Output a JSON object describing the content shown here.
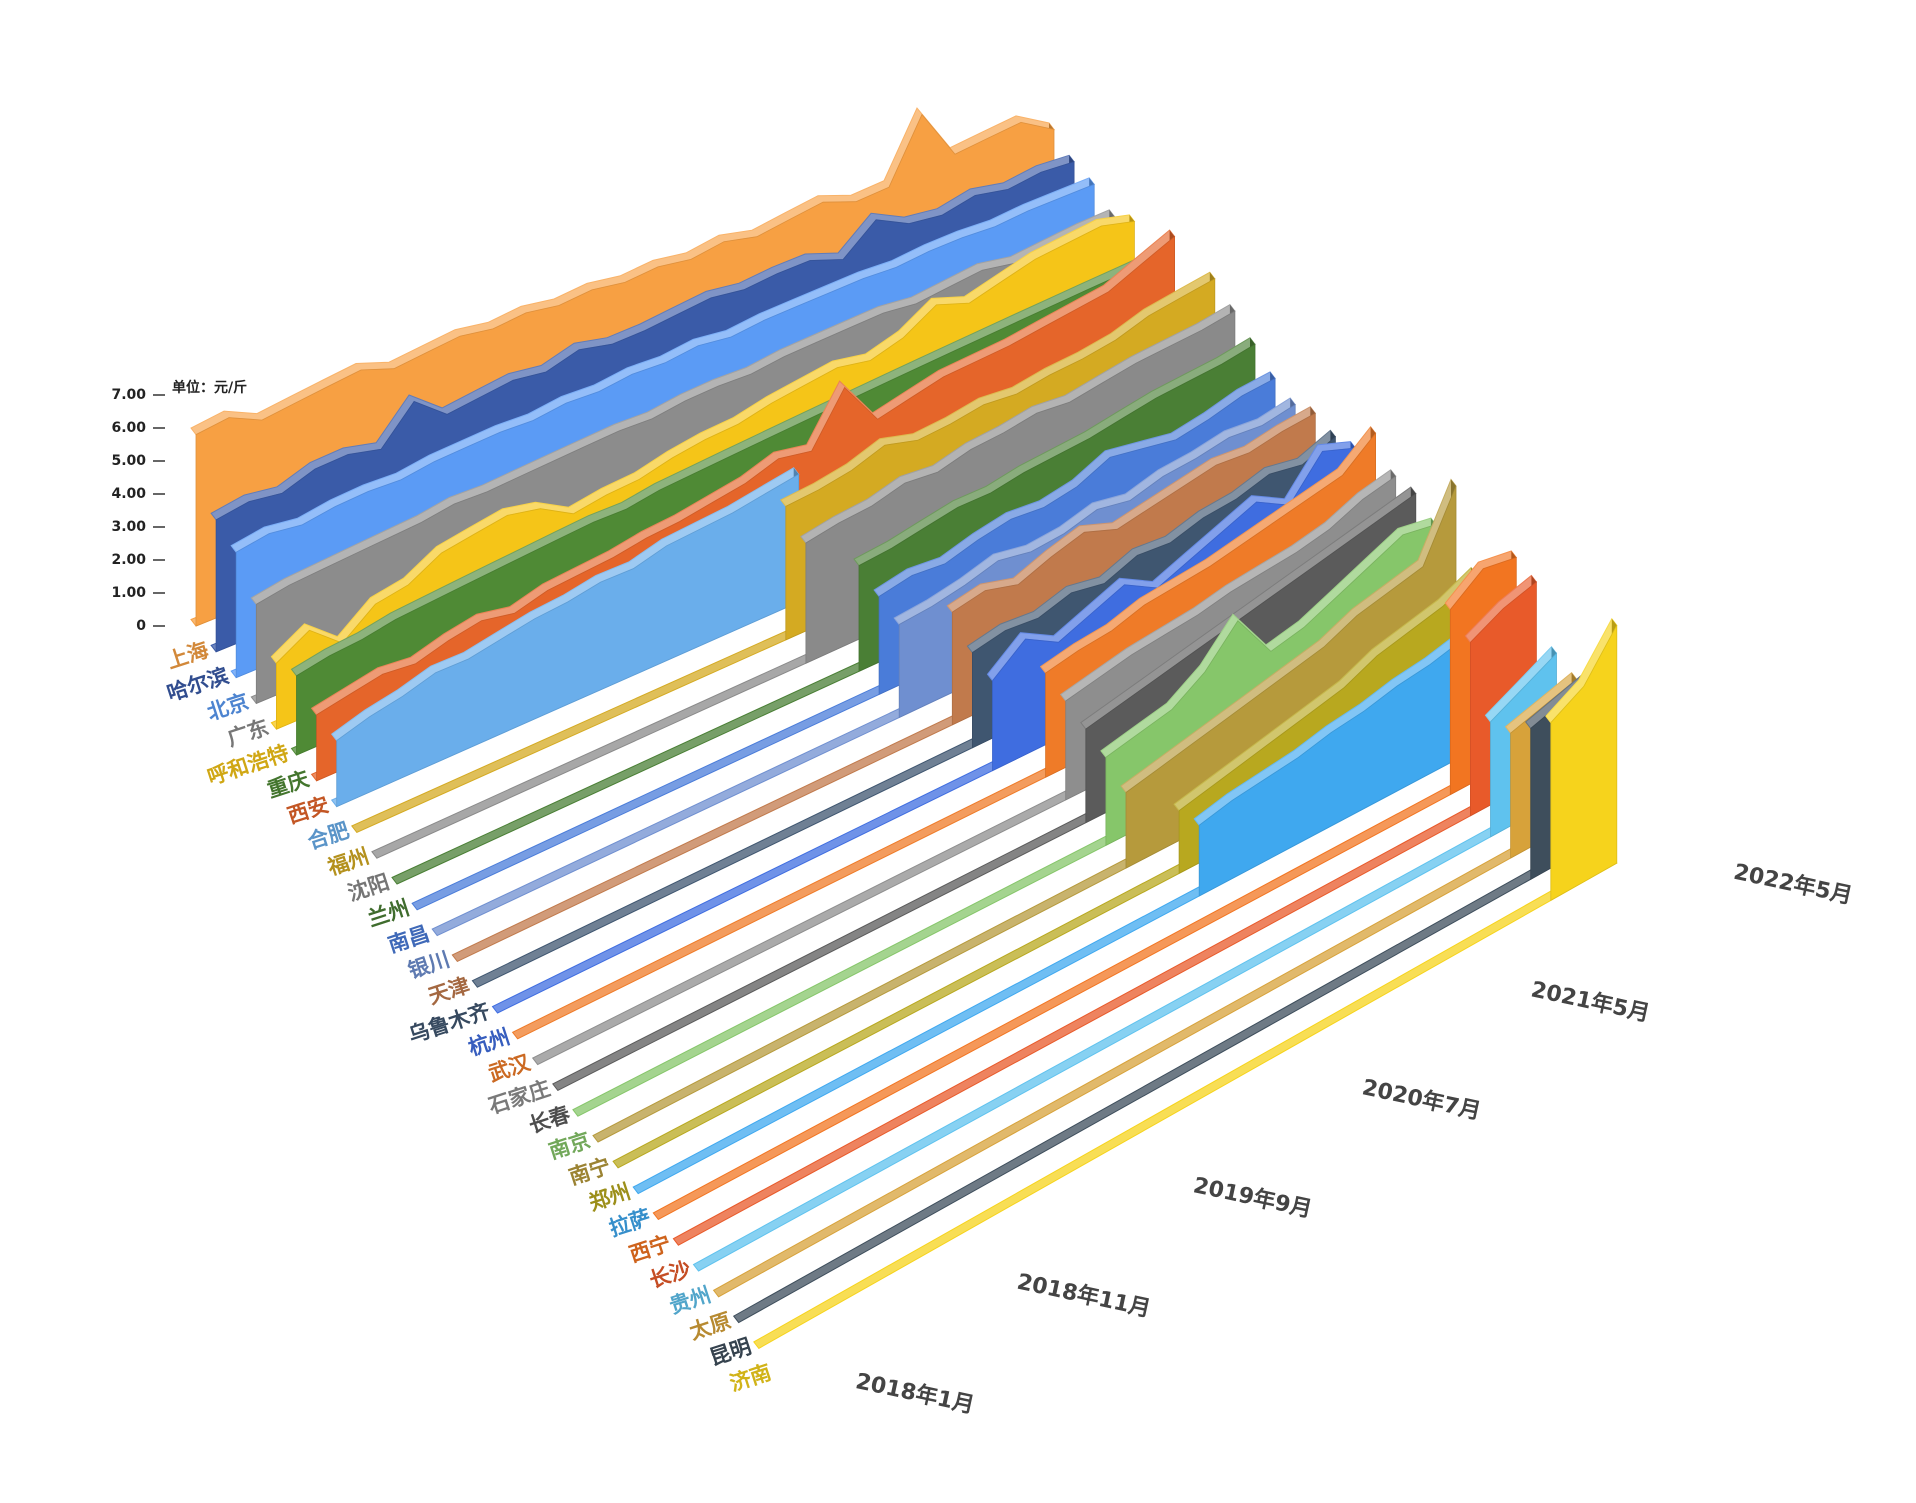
{
  "chart_data": {
    "type": "ribbon3d",
    "ylabel": "单位：元/斤",
    "categories": [
      "2018年1月",
      null,
      null,
      null,
      null,
      "2018年11月",
      null,
      null,
      null,
      null,
      "2019年9月",
      null,
      null,
      null,
      null,
      "2020年7月",
      null,
      null,
      null,
      null,
      "2021年5月",
      null,
      null,
      null,
      null,
      null,
      "2022年5月"
    ],
    "ylim": [
      0,
      7
    ],
    "yticks": [
      0,
      {
        "value": 1,
        "label": "1.00"
      },
      {
        "value": 2,
        "label": "2.00"
      },
      {
        "value": 3,
        "label": "3.00"
      },
      {
        "value": 4,
        "label": "4.00"
      },
      {
        "value": 5,
        "label": "5.00"
      },
      {
        "value": 6,
        "label": "6.00"
      },
      {
        "value": 7,
        "label": "7.00"
      }
    ],
    "series": [
      {
        "name": "上海",
        "color": "#f7a043",
        "values": [
          5.8,
          6.0,
          5.6,
          5.8,
          6.0,
          6.2,
          5.9,
          6.1,
          6.3,
          6.2,
          6.4,
          6.3,
          6.5,
          6.4,
          6.6,
          6.5,
          6.8,
          6.6,
          6.9,
          7.2,
          6.8,
          7.0,
          9.8,
          7.6,
          7.9,
          8.2,
          7.4
        ]
      },
      {
        "name": "哈尔滨",
        "color": "#3a5ba8",
        "values": [
          4.0,
          4.2,
          4.1,
          4.5,
          4.6,
          4.4,
          5.6,
          4.8,
          5.0,
          5.2,
          5.1,
          5.5,
          5.3,
          5.4,
          5.6,
          5.8,
          5.7,
          5.9,
          6.0,
          5.6,
          6.8,
          6.2,
          6.1,
          6.5,
          6.3,
          6.6,
          6.6
        ]
      },
      {
        "name": "北京",
        "color": "#5b9bf5",
        "values": [
          3.8,
          4.0,
          3.9,
          4.1,
          4.2,
          4.2,
          4.4,
          4.5,
          4.6,
          4.6,
          4.8,
          4.8,
          5.0,
          5.0,
          5.2,
          5.1,
          5.3,
          5.4,
          5.5,
          5.6,
          5.6,
          5.8,
          5.9,
          5.9,
          6.1,
          6.2,
          6.3
        ]
      },
      {
        "name": "广东",
        "color": "#8c8c8c",
        "values": [
          3.0,
          3.2,
          3.3,
          3.4,
          3.5,
          3.6,
          3.8,
          3.8,
          3.9,
          4.0,
          4.1,
          4.2,
          4.2,
          4.4,
          4.5,
          4.5,
          4.7,
          4.8,
          4.9,
          5.0,
          4.9,
          5.1,
          5.3,
          5.1,
          5.3,
          5.5,
          5.6
        ]
      },
      {
        "name": "呼和浩特",
        "color": "#f5c518",
        "values": [
          2.0,
          2.6,
          1.8,
          2.6,
          2.8,
          3.4,
          3.6,
          3.8,
          3.6,
          3.0,
          3.2,
          3.3,
          3.6,
          3.8,
          3.9,
          4.2,
          4.4,
          4.6,
          4.4,
          4.8,
          5.6,
          5.2,
          5.6,
          6.0,
          6.2,
          6.4,
          6.1
        ]
      },
      {
        "name": "重庆",
        "color": "#4f8a35",
        "values": [
          2.4,
          2.6,
          2.7,
          2.9,
          3.0,
          3.1,
          3.2,
          3.3,
          3.4,
          3.5,
          3.5,
          3.7,
          3.8,
          3.9,
          4.0,
          4.1,
          4.2,
          4.3,
          4.4,
          4.5,
          4.6,
          4.7,
          4.8,
          4.9,
          5.0,
          5.1,
          5.2
        ]
      },
      {
        "name": "西安",
        "color": "#e5652a",
        "values": [
          2.0,
          2.2,
          2.4,
          2.3,
          2.6,
          2.8,
          2.6,
          2.9,
          3.0,
          3.1,
          3.3,
          3.4,
          3.6,
          3.8,
          4.2,
          4.0,
          5.8,
          4.2,
          4.5,
          4.8,
          4.9,
          5.0,
          5.2,
          5.4,
          5.6,
          6.2,
          6.8
        ]
      },
      {
        "name": "合肥",
        "color": "#6aaeeb",
        "values": [
          2.0,
          2.3,
          2.5,
          2.8,
          2.8,
          3.0,
          3.2,
          3.3,
          3.5,
          3.5,
          3.8,
          3.9,
          4.0,
          4.2,
          4.4,
          null,
          null,
          null,
          null,
          null,
          null,
          null,
          null,
          null,
          null,
          null,
          null
        ]
      },
      {
        "name": "福州",
        "color": "#d4aa22",
        "values": [
          null,
          null,
          null,
          null,
          null,
          null,
          null,
          null,
          null,
          null,
          null,
          null,
          null,
          4.5,
          4.6,
          4.8,
          5.2,
          4.9,
          5.0,
          5.2,
          5.1,
          5.3,
          5.4,
          5.6,
          6.0,
          6.2,
          6.4
        ]
      },
      {
        "name": "沈阳",
        "color": "#8a8a8a",
        "values": [
          null,
          null,
          null,
          null,
          null,
          null,
          null,
          null,
          null,
          null,
          null,
          null,
          null,
          4.0,
          4.2,
          4.3,
          4.6,
          4.5,
          4.8,
          4.9,
          5.1,
          5.0,
          5.2,
          5.4,
          5.5,
          5.6,
          5.8
        ]
      },
      {
        "name": "兰州",
        "color": "#4a7f35",
        "values": [
          null,
          null,
          null,
          null,
          null,
          null,
          null,
          null,
          null,
          null,
          null,
          null,
          null,
          null,
          3.5,
          3.6,
          3.8,
          4.0,
          4.0,
          4.2,
          4.3,
          4.4,
          4.6,
          4.8,
          4.9,
          5.0,
          5.2
        ]
      },
      {
        "name": "南昌",
        "color": "#4a7cd9",
        "values": [
          null,
          null,
          null,
          null,
          null,
          null,
          null,
          null,
          null,
          null,
          null,
          null,
          null,
          null,
          3.2,
          3.4,
          3.3,
          3.6,
          3.8,
          3.7,
          3.9,
          4.4,
          4.2,
          4.0,
          4.2,
          4.5,
          4.6
        ]
      },
      {
        "name": "银川",
        "color": "#6f8fd0",
        "values": [
          null,
          null,
          null,
          null,
          null,
          null,
          null,
          null,
          null,
          null,
          null,
          null,
          null,
          null,
          3.0,
          3.1,
          3.3,
          3.6,
          3.4,
          3.5,
          3.8,
          3.6,
          3.9,
          4.0,
          4.2,
          4.1,
          4.3
        ]
      },
      {
        "name": "天津",
        "color": "#c17a4c",
        "values": [
          null,
          null,
          null,
          null,
          null,
          null,
          null,
          null,
          null,
          null,
          null,
          null,
          null,
          null,
          null,
          3.6,
          3.8,
          3.5,
          3.9,
          4.2,
          3.8,
          4.0,
          4.2,
          4.4,
          4.3,
          4.5,
          4.6
        ]
      },
      {
        "name": "乌鲁木齐",
        "color": "#3f5670",
        "values": [
          null,
          null,
          null,
          null,
          null,
          null,
          null,
          null,
          null,
          null,
          null,
          null,
          null,
          null,
          null,
          3.0,
          3.2,
          3.1,
          3.4,
          3.2,
          3.6,
          3.5,
          3.8,
          3.9,
          4.2,
          4.0,
          4.4
        ]
      },
      {
        "name": "杭州",
        "color": "#3f6de0",
        "values": [
          null,
          null,
          null,
          null,
          null,
          null,
          null,
          null,
          null,
          null,
          null,
          null,
          null,
          null,
          null,
          2.8,
          3.6,
          3.0,
          3.4,
          3.8,
          3.2,
          3.6,
          4.0,
          4.4,
          3.8,
          5.0,
          4.6
        ]
      },
      {
        "name": "武汉",
        "color": "#ef7b28",
        "values": [
          null,
          null,
          null,
          null,
          null,
          null,
          null,
          null,
          null,
          null,
          null,
          null,
          null,
          null,
          null,
          null,
          3.2,
          3.4,
          3.5,
          3.8,
          3.9,
          4.0,
          4.2,
          4.4,
          4.6,
          4.8,
          5.6
        ]
      },
      {
        "name": "石家庄",
        "color": "#8e8e8e",
        "values": [
          null,
          null,
          null,
          null,
          null,
          null,
          null,
          null,
          null,
          null,
          null,
          null,
          null,
          null,
          null,
          null,
          3.0,
          3.2,
          3.4,
          3.5,
          3.6,
          3.8,
          3.9,
          4.0,
          4.2,
          4.6,
          4.8
        ]
      },
      {
        "name": "长春",
        "color": "#5b5b5b",
        "values": [
          null,
          null,
          null,
          null,
          null,
          null,
          null,
          null,
          null,
          null,
          null,
          null,
          null,
          null,
          null,
          null,
          2.8,
          3.0,
          3.2,
          3.4,
          3.6,
          3.8,
          4.0,
          4.2,
          4.4,
          4.6,
          4.8
        ]
      },
      {
        "name": "南京",
        "color": "#86c66a",
        "values": [
          null,
          null,
          null,
          null,
          null,
          null,
          null,
          null,
          null,
          null,
          null,
          null,
          null,
          null,
          null,
          null,
          2.6,
          2.8,
          3.0,
          3.6,
          4.6,
          3.2,
          3.4,
          3.8,
          4.2,
          4.6,
          4.4
        ]
      },
      {
        "name": "南宁",
        "color": "#b69a3c",
        "values": [
          null,
          null,
          null,
          null,
          null,
          null,
          null,
          null,
          null,
          null,
          null,
          null,
          null,
          null,
          null,
          null,
          2.2,
          2.4,
          2.6,
          2.8,
          3.0,
          3.2,
          3.4,
          3.8,
          4.0,
          4.2,
          6.0
        ]
      },
      {
        "name": "郑州",
        "color": "#b8a81f",
        "values": [
          null,
          null,
          null,
          null,
          null,
          null,
          null,
          null,
          null,
          null,
          null,
          null,
          null,
          null,
          null,
          null,
          null,
          1.8,
          2.0,
          2.2,
          2.4,
          2.6,
          2.8,
          3.2,
          3.4,
          3.6,
          4.0
        ]
      },
      {
        "name": "拉萨",
        "color": "#3fa8ef",
        "values": [
          null,
          null,
          null,
          null,
          null,
          null,
          null,
          null,
          null,
          null,
          null,
          null,
          null,
          null,
          null,
          null,
          null,
          2.0,
          2.2,
          2.3,
          2.4,
          2.6,
          2.7,
          2.9,
          3.0,
          3.2,
          3.4
        ]
      },
      {
        "name": "西宁",
        "color": "#f27521",
        "values": [
          null,
          null,
          null,
          null,
          null,
          null,
          null,
          null,
          null,
          null,
          null,
          null,
          null,
          null,
          null,
          null,
          null,
          null,
          null,
          null,
          null,
          null,
          null,
          null,
          5.0,
          5.6,
          5.4
        ]
      },
      {
        "name": "长沙",
        "color": "#e85a2a",
        "values": [
          null,
          null,
          null,
          null,
          null,
          null,
          null,
          null,
          null,
          null,
          null,
          null,
          null,
          null,
          null,
          null,
          null,
          null,
          null,
          null,
          null,
          null,
          null,
          null,
          4.6,
          5.0,
          5.2
        ]
      },
      {
        "name": "贵州",
        "color": "#5fc2ee",
        "values": [
          null,
          null,
          null,
          null,
          null,
          null,
          null,
          null,
          null,
          null,
          null,
          null,
          null,
          null,
          null,
          null,
          null,
          null,
          null,
          null,
          null,
          null,
          null,
          null,
          3.0,
          3.4,
          3.8
        ]
      },
      {
        "name": "太原",
        "color": "#d7a23a",
        "values": [
          null,
          null,
          null,
          null,
          null,
          null,
          null,
          null,
          null,
          null,
          null,
          null,
          null,
          null,
          null,
          null,
          null,
          null,
          null,
          null,
          null,
          null,
          null,
          null,
          3.2,
          3.4,
          3.6
        ]
      },
      {
        "name": "昆明",
        "color": "#3e4e5c",
        "values": [
          null,
          null,
          null,
          null,
          null,
          null,
          null,
          null,
          null,
          null,
          null,
          null,
          null,
          null,
          null,
          null,
          null,
          null,
          null,
          null,
          null,
          null,
          null,
          null,
          3.8,
          4.0,
          4.2
        ]
      },
      {
        "name": "济南",
        "color": "#f6d31c",
        "values": [
          null,
          null,
          null,
          null,
          null,
          null,
          null,
          null,
          null,
          null,
          null,
          null,
          null,
          null,
          null,
          null,
          null,
          null,
          null,
          null,
          null,
          null,
          null,
          null,
          4.4,
          4.8,
          5.8
        ]
      }
    ]
  }
}
